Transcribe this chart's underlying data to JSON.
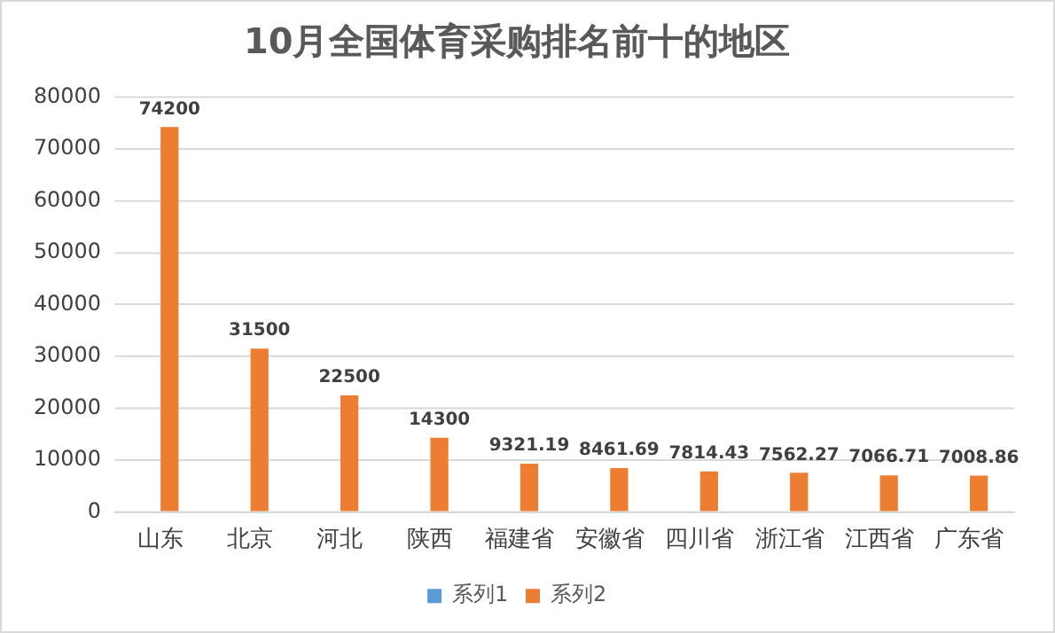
{
  "chart_data": {
    "type": "bar",
    "title": "10月全国体育采购排名前十的地区",
    "categories": [
      "山东",
      "北京",
      "河北",
      "陕西",
      "福建省",
      "安徽省",
      "四川省",
      "浙江省",
      "江西省",
      "广东省"
    ],
    "series": [
      {
        "name": "系列1",
        "color": "#5b9bd5",
        "values": [
          null,
          null,
          null,
          null,
          null,
          null,
          null,
          null,
          null,
          null
        ]
      },
      {
        "name": "系列2",
        "color": "#ed7d31",
        "values": [
          74200,
          31500,
          22500,
          14300,
          9321.19,
          8461.69,
          7814.43,
          7562.27,
          7066.71,
          7008.86
        ]
      }
    ],
    "ylim": [
      0,
      80000
    ],
    "yticks": [
      0,
      10000,
      20000,
      30000,
      40000,
      50000,
      60000,
      70000,
      80000
    ],
    "grid": "y",
    "legend": "bottom",
    "data_labels": true
  }
}
